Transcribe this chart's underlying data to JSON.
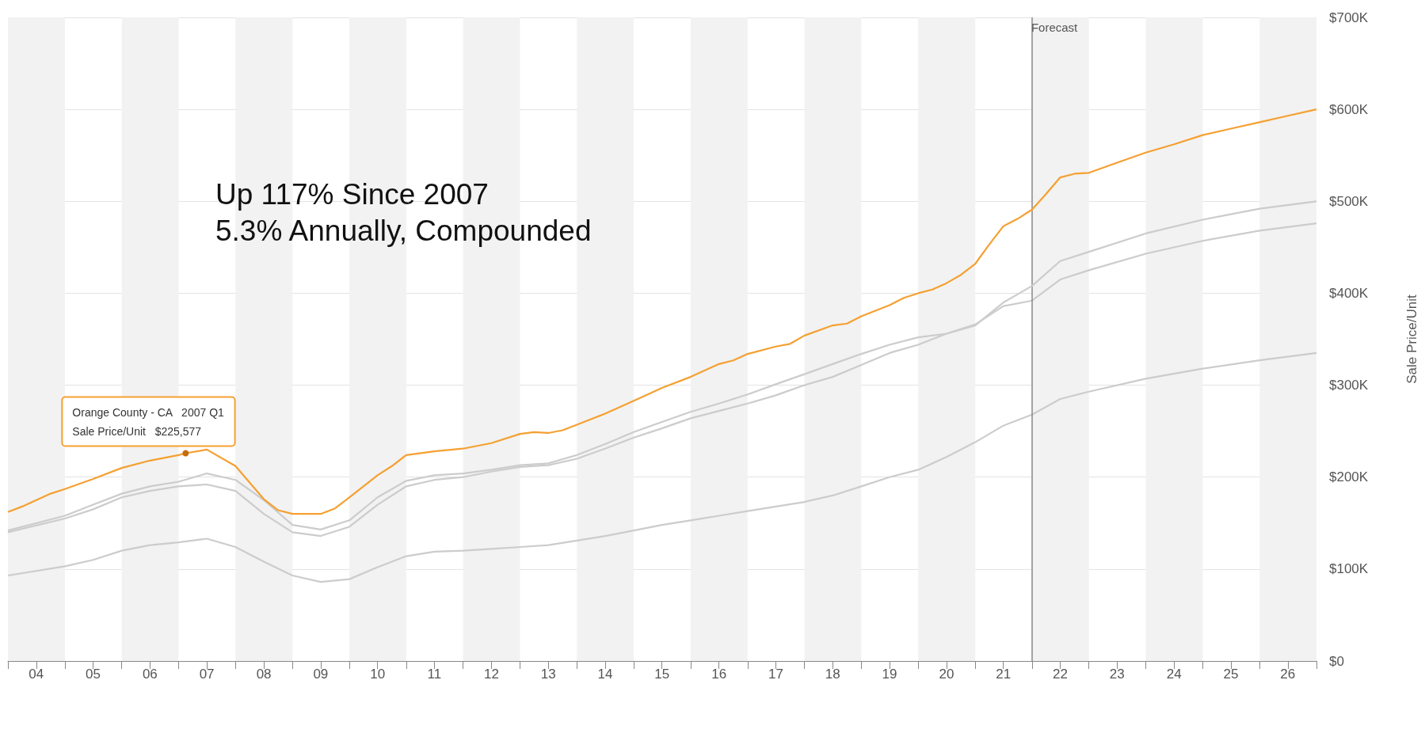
{
  "chart_data": {
    "type": "line",
    "ylabel": "Sale Price/Unit",
    "xlim": [
      "2004-01",
      "2027-01"
    ],
    "ylim": [
      0,
      700
    ],
    "xticks": [
      {
        "value": "2004-01",
        "label": null
      },
      {
        "value": "2004-07",
        "label": "04"
      },
      {
        "value": "2005-01",
        "label": null
      },
      {
        "value": "2005-07",
        "label": "05"
      },
      {
        "value": "2006-01",
        "label": null
      },
      {
        "value": "2006-07",
        "label": "06"
      },
      {
        "value": "2007-01",
        "label": null
      },
      {
        "value": "2007-07",
        "label": "07"
      },
      {
        "value": "2008-01",
        "label": null
      },
      {
        "value": "2008-07",
        "label": "08"
      },
      {
        "value": "2009-01",
        "label": null
      },
      {
        "value": "2009-07",
        "label": "09"
      },
      {
        "value": "2010-01",
        "label": null
      },
      {
        "value": "2010-07",
        "label": "10"
      },
      {
        "value": "2011-01",
        "label": null
      },
      {
        "value": "2011-07",
        "label": "11"
      },
      {
        "value": "2012-01",
        "label": null
      },
      {
        "value": "2012-07",
        "label": "12"
      },
      {
        "value": "2013-01",
        "label": null
      },
      {
        "value": "2013-07",
        "label": "13"
      },
      {
        "value": "2014-01",
        "label": null
      },
      {
        "value": "2014-07",
        "label": "14"
      },
      {
        "value": "2015-01",
        "label": null
      },
      {
        "value": "2015-07",
        "label": "15"
      },
      {
        "value": "2016-01",
        "label": null
      },
      {
        "value": "2016-07",
        "label": "16"
      },
      {
        "value": "2017-01",
        "label": null
      },
      {
        "value": "2017-07",
        "label": "17"
      },
      {
        "value": "2018-01",
        "label": null
      },
      {
        "value": "2018-07",
        "label": "18"
      },
      {
        "value": "2019-01",
        "label": null
      },
      {
        "value": "2019-07",
        "label": "19"
      },
      {
        "value": "2020-01",
        "label": null
      },
      {
        "value": "2020-07",
        "label": "20"
      },
      {
        "value": "2021-01",
        "label": null
      },
      {
        "value": "2021-07",
        "label": "21"
      },
      {
        "value": "2022-01",
        "label": null
      },
      {
        "value": "2022-07",
        "label": "22"
      },
      {
        "value": "2023-01",
        "label": null
      },
      {
        "value": "2023-07",
        "label": "23"
      },
      {
        "value": "2024-01",
        "label": null
      },
      {
        "value": "2024-07",
        "label": "24"
      },
      {
        "value": "2025-01",
        "label": null
      },
      {
        "value": "2025-07",
        "label": "25"
      },
      {
        "value": "2026-01",
        "label": null
      },
      {
        "value": "2026-07",
        "label": "26"
      },
      {
        "value": "2027-01",
        "label": null
      }
    ],
    "yticks": [
      {
        "value": 0,
        "label": "$0"
      },
      {
        "value": 100,
        "label": "$100K"
      },
      {
        "value": 200,
        "label": "$200K"
      },
      {
        "value": 300,
        "label": "$300K"
      },
      {
        "value": 400,
        "label": "$400K"
      },
      {
        "value": 500,
        "label": "$500K"
      },
      {
        "value": 600,
        "label": "$600K"
      },
      {
        "value": 700,
        "label": "$700K"
      }
    ],
    "grid": "y",
    "marker": "none",
    "series": [
      {
        "color": "#cccccc",
        "x": [
          "2004-01",
          "2005-01",
          "2005-07",
          "2006-01",
          "2006-07",
          "2007-01",
          "2007-07",
          "2008-01",
          "2008-07",
          "2009-01",
          "2009-07",
          "2010-01",
          "2010-07",
          "2011-01",
          "2011-07",
          "2012-01",
          "2012-07",
          "2013-01",
          "2013-07",
          "2014-01",
          "2014-07",
          "2015-01",
          "2015-07",
          "2016-01",
          "2016-07",
          "2017-01",
          "2017-07",
          "2018-01",
          "2018-07",
          "2019-01",
          "2019-07",
          "2020-01",
          "2020-07",
          "2021-01",
          "2021-07",
          "2022-01",
          "2022-07",
          "2023-01",
          "2024-01",
          "2025-01",
          "2026-01",
          "2027-01"
        ],
        "values": [
          93,
          103,
          110,
          120,
          126,
          129,
          133,
          124,
          108,
          93,
          86,
          89,
          102,
          114,
          119,
          120,
          122,
          124,
          126,
          131,
          136,
          142,
          148,
          153,
          158,
          163,
          168,
          173,
          180,
          190,
          200,
          208,
          222,
          238,
          256,
          268,
          285,
          293,
          307,
          318,
          327,
          335
        ]
      },
      {
        "color": "#cccccc",
        "x": [
          "2004-01",
          "2005-01",
          "2005-07",
          "2006-01",
          "2006-07",
          "2007-01",
          "2007-07",
          "2008-01",
          "2008-07",
          "2009-01",
          "2009-07",
          "2010-01",
          "2010-07",
          "2011-01",
          "2011-07",
          "2012-01",
          "2012-07",
          "2013-01",
          "2013-07",
          "2014-01",
          "2014-07",
          "2015-01",
          "2015-07",
          "2016-01",
          "2016-07",
          "2017-01",
          "2017-07",
          "2018-01",
          "2018-07",
          "2019-01",
          "2019-07",
          "2020-01",
          "2020-07",
          "2021-01",
          "2021-07",
          "2022-01",
          "2022-07",
          "2023-01",
          "2024-01",
          "2025-01",
          "2026-01",
          "2027-01"
        ],
        "values": [
          140,
          155,
          165,
          178,
          185,
          190,
          192,
          185,
          160,
          140,
          136,
          146,
          170,
          190,
          197,
          200,
          206,
          211,
          213,
          220,
          231,
          243,
          253,
          264,
          272,
          280,
          289,
          300,
          309,
          322,
          335,
          344,
          356,
          366,
          386,
          392,
          415,
          425,
          443,
          457,
          468,
          476
        ]
      },
      {
        "color": "#cccccc",
        "x": [
          "2004-01",
          "2005-01",
          "2005-07",
          "2006-01",
          "2006-07",
          "2007-01",
          "2007-07",
          "2008-01",
          "2008-07",
          "2009-01",
          "2009-07",
          "2010-01",
          "2010-07",
          "2011-01",
          "2011-07",
          "2012-01",
          "2012-07",
          "2013-01",
          "2013-07",
          "2014-01",
          "2014-07",
          "2015-01",
          "2015-07",
          "2016-01",
          "2016-07",
          "2017-01",
          "2017-07",
          "2018-01",
          "2018-07",
          "2019-01",
          "2019-07",
          "2020-01",
          "2020-07",
          "2021-01",
          "2021-07",
          "2022-01",
          "2022-07",
          "2023-01",
          "2024-01",
          "2025-01",
          "2026-01",
          "2027-01"
        ],
        "values": [
          142,
          158,
          170,
          182,
          190,
          195,
          204,
          197,
          175,
          148,
          143,
          153,
          178,
          196,
          202,
          204,
          208,
          213,
          215,
          224,
          236,
          249,
          260,
          271,
          280,
          290,
          301,
          312,
          323,
          334,
          344,
          352,
          356,
          365,
          390,
          408,
          435,
          445,
          465,
          480,
          492,
          500
        ]
      },
      {
        "color": "#f5a031",
        "x": [
          "2004-01",
          "2004-04",
          "2004-07",
          "2004-10",
          "2005-01",
          "2005-07",
          "2006-01",
          "2006-07",
          "2007-01",
          "2007-02-15",
          "2007-07",
          "2008-01",
          "2008-07",
          "2008-10",
          "2009-01",
          "2009-07",
          "2009-10",
          "2010-01",
          "2010-07",
          "2010-10",
          "2011-01",
          "2011-07",
          "2012-01",
          "2012-07",
          "2013-01",
          "2013-04",
          "2013-07",
          "2013-10",
          "2014-01",
          "2014-07",
          "2015-01",
          "2015-04",
          "2015-07",
          "2016-01",
          "2016-07",
          "2016-10",
          "2017-01",
          "2017-07",
          "2017-10",
          "2018-01",
          "2018-07",
          "2018-10",
          "2019-01",
          "2019-07",
          "2019-10",
          "2020-01",
          "2020-04",
          "2020-07",
          "2020-10",
          "2021-01",
          "2021-04",
          "2021-07",
          "2021-10",
          "2022-01",
          "2022-04",
          "2022-07",
          "2022-10",
          "2023-01",
          "2023-07",
          "2024-01",
          "2024-07",
          "2025-01",
          "2025-07",
          "2026-01",
          "2026-07",
          "2027-01"
        ],
        "values": [
          162,
          168,
          175,
          182,
          187,
          198,
          210,
          218,
          224,
          226,
          230,
          212,
          176,
          164,
          160,
          160,
          166,
          178,
          202,
          212,
          224,
          228,
          231,
          237,
          247,
          249,
          248,
          251,
          257,
          269,
          283,
          290,
          297,
          309,
          323,
          327,
          334,
          342,
          345,
          354,
          365,
          367,
          375,
          387,
          395,
          400,
          404,
          411,
          420,
          432,
          453,
          473,
          481,
          491,
          508,
          526,
          530,
          531,
          542,
          553,
          562,
          572,
          579,
          586,
          593,
          600
        ]
      }
    ],
    "ref_lines": [
      {
        "axis": "x",
        "value": "2022-01",
        "label": "Forecast",
        "color": "#888888"
      }
    ],
    "bands": [
      {
        "axis": "x",
        "from": "2004-01",
        "to": "2005-01",
        "color": "#f2f2f2"
      },
      {
        "axis": "x",
        "from": "2006-01",
        "to": "2007-01",
        "color": "#f2f2f2"
      },
      {
        "axis": "x",
        "from": "2008-01",
        "to": "2009-01",
        "color": "#f2f2f2"
      },
      {
        "axis": "x",
        "from": "2010-01",
        "to": "2011-01",
        "color": "#f2f2f2"
      },
      {
        "axis": "x",
        "from": "2012-01",
        "to": "2013-01",
        "color": "#f2f2f2"
      },
      {
        "axis": "x",
        "from": "2014-01",
        "to": "2015-01",
        "color": "#f2f2f2"
      },
      {
        "axis": "x",
        "from": "2016-01",
        "to": "2017-01",
        "color": "#f2f2f2"
      },
      {
        "axis": "x",
        "from": "2018-01",
        "to": "2019-01",
        "color": "#f2f2f2"
      },
      {
        "axis": "x",
        "from": "2020-01",
        "to": "2021-01",
        "color": "#f2f2f2"
      },
      {
        "axis": "x",
        "from": "2022-01",
        "to": "2023-01",
        "color": "#f2f2f2"
      },
      {
        "axis": "x",
        "from": "2024-01",
        "to": "2025-01",
        "color": "#f2f2f2"
      },
      {
        "axis": "x",
        "from": "2026-01",
        "to": "2027-01",
        "color": "#f2f2f2"
      }
    ],
    "annotations": [
      "Up 117% Since 2007\n5.3% Annually, Compounded",
      {
        "text": "Orange County - CA   2007 Q1\nSale Price/Unit   $225,577",
        "x": "2007-02-15",
        "y": 226
      }
    ]
  }
}
